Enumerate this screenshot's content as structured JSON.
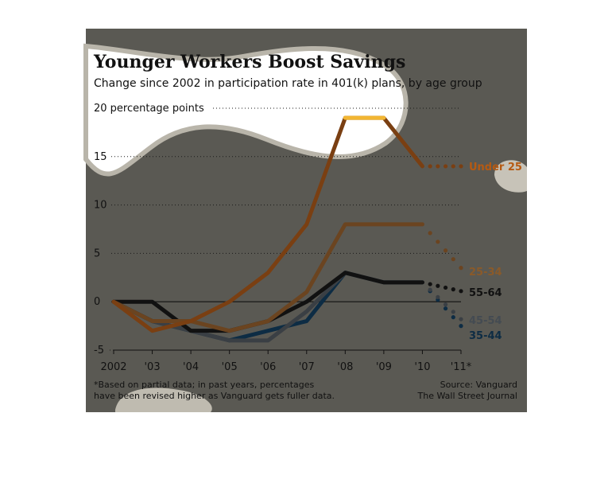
{
  "chart_data": {
    "type": "line",
    "title": "Younger Workers Boost Savings",
    "subtitle": "Change since 2002 in participation rate in 401(k) plans, by age group",
    "ylabel": "percentage points",
    "ylim": [
      -5,
      20
    ],
    "y_ticks": [
      {
        "value": 20,
        "label": "20 percentage points"
      },
      {
        "value": 15,
        "label": "15"
      },
      {
        "value": 10,
        "label": "10"
      },
      {
        "value": 5,
        "label": "5"
      },
      {
        "value": 0,
        "label": "0"
      },
      {
        "value": -5,
        "label": "-5"
      }
    ],
    "x": [
      2002,
      2003,
      2004,
      2005,
      2006,
      2007,
      2008,
      2009,
      2010,
      2011
    ],
    "x_tick_labels": [
      "2002",
      "'03",
      "'04",
      "'05",
      "'06",
      "'07",
      "'08",
      "'09",
      "'10",
      "'11*"
    ],
    "grid": true,
    "series": [
      {
        "name": "Under 25",
        "color": "#7a3f12",
        "label_color": "#b65a12",
        "values": [
          0,
          -3,
          -2,
          0,
          3,
          8,
          19,
          19,
          14,
          14
        ]
      },
      {
        "name": "25-34",
        "color": "#6b4420",
        "label_color": "#8a5a2a",
        "values": [
          0,
          -2,
          -2,
          -3,
          -2,
          1,
          8,
          8,
          8,
          3.5
        ]
      },
      {
        "name": "55-64",
        "color": "#111111",
        "label_color": "#111111",
        "values": [
          0,
          0,
          -3,
          -3,
          -2,
          0,
          3,
          2,
          2,
          1.1
        ]
      },
      {
        "name": "45-54",
        "color": "#3a3f44",
        "label_color": "#444b52",
        "values": [
          0,
          -2,
          -3,
          -4,
          -4,
          -1,
          3,
          2,
          2,
          -1.8
        ]
      },
      {
        "name": "35-44",
        "color": "#0d2c44",
        "label_color": "#0d2c44",
        "values": [
          0,
          -2,
          -3,
          -4,
          -3,
          -2,
          3,
          2,
          2,
          -2.5
        ]
      }
    ],
    "partial_from_index": 8,
    "note": "*Based on partial data; in past years, percentages have been revised higher as Vanguard gets fuller data.",
    "source": "Source: Vanguard",
    "publisher": "The Wall Street Journal"
  }
}
